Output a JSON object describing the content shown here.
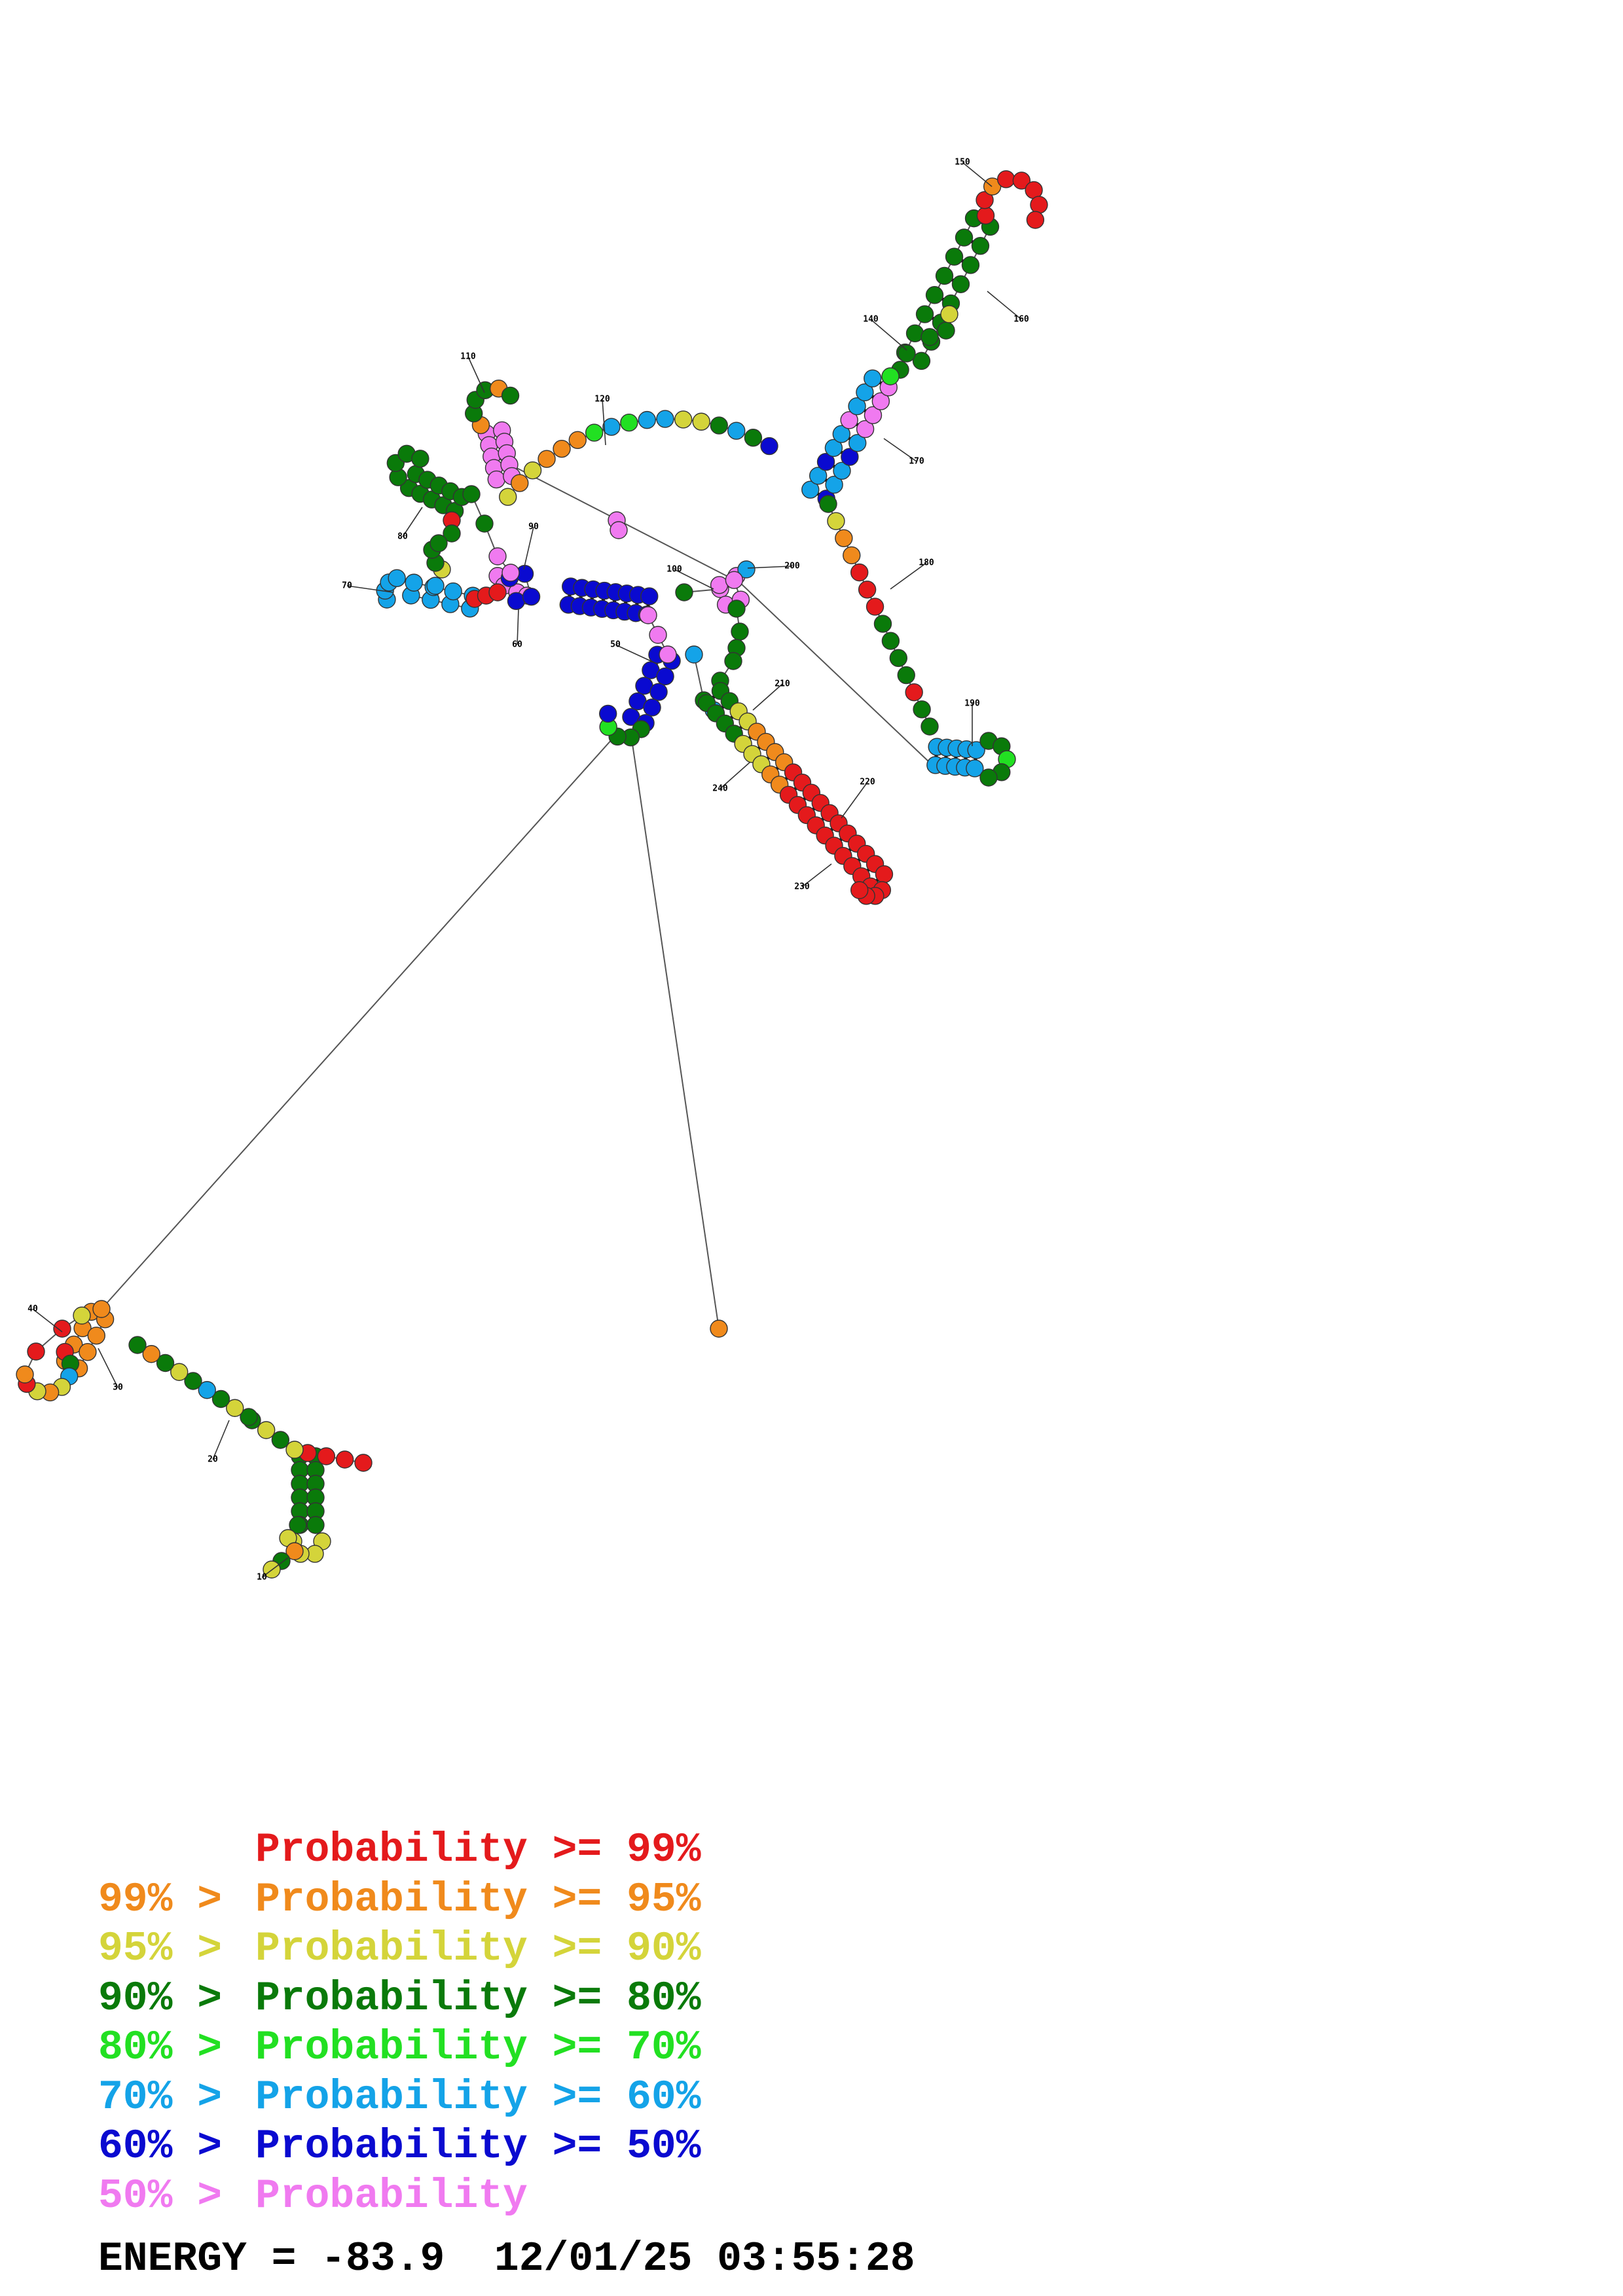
{
  "colors": {
    "p99": "#e41a1c",
    "p95": "#f08a1c",
    "p90": "#d4d43a",
    "p80": "#0a7a0a",
    "p70": "#22e022",
    "p60": "#14a3e8",
    "p50": "#0a0ad0",
    "plow": "#f07af0",
    "line": "#555555"
  },
  "structure": {
    "position_labels": [
      "10",
      "20",
      "30",
      "40",
      "50",
      "60",
      "70",
      "80",
      "90",
      "100",
      "110",
      "120",
      "140",
      "150",
      "160",
      "170",
      "180",
      "190",
      "200",
      "210",
      "220",
      "230",
      "240"
    ]
  },
  "legend": [
    {
      "prefix": "",
      "body": "Probability >= 99%",
      "color_key": "p99"
    },
    {
      "prefix": "99% > ",
      "body": "Probability >= 95%",
      "color_key": "p95"
    },
    {
      "prefix": "95% > ",
      "body": "Probability >= 90%",
      "color_key": "p90"
    },
    {
      "prefix": "90% > ",
      "body": "Probability >= 80%",
      "color_key": "p80"
    },
    {
      "prefix": "80% > ",
      "body": "Probability >= 70%",
      "color_key": "p70"
    },
    {
      "prefix": "70% > ",
      "body": "Probability >= 60%",
      "color_key": "p60"
    },
    {
      "prefix": "60% > ",
      "body": "Probability >= 50%",
      "color_key": "p50"
    },
    {
      "prefix": "50% > ",
      "body": "Probability",
      "color_key": "plow"
    }
  ],
  "energy": {
    "text": "ENERGY = -83.9  12/01/25 03:55:28"
  }
}
